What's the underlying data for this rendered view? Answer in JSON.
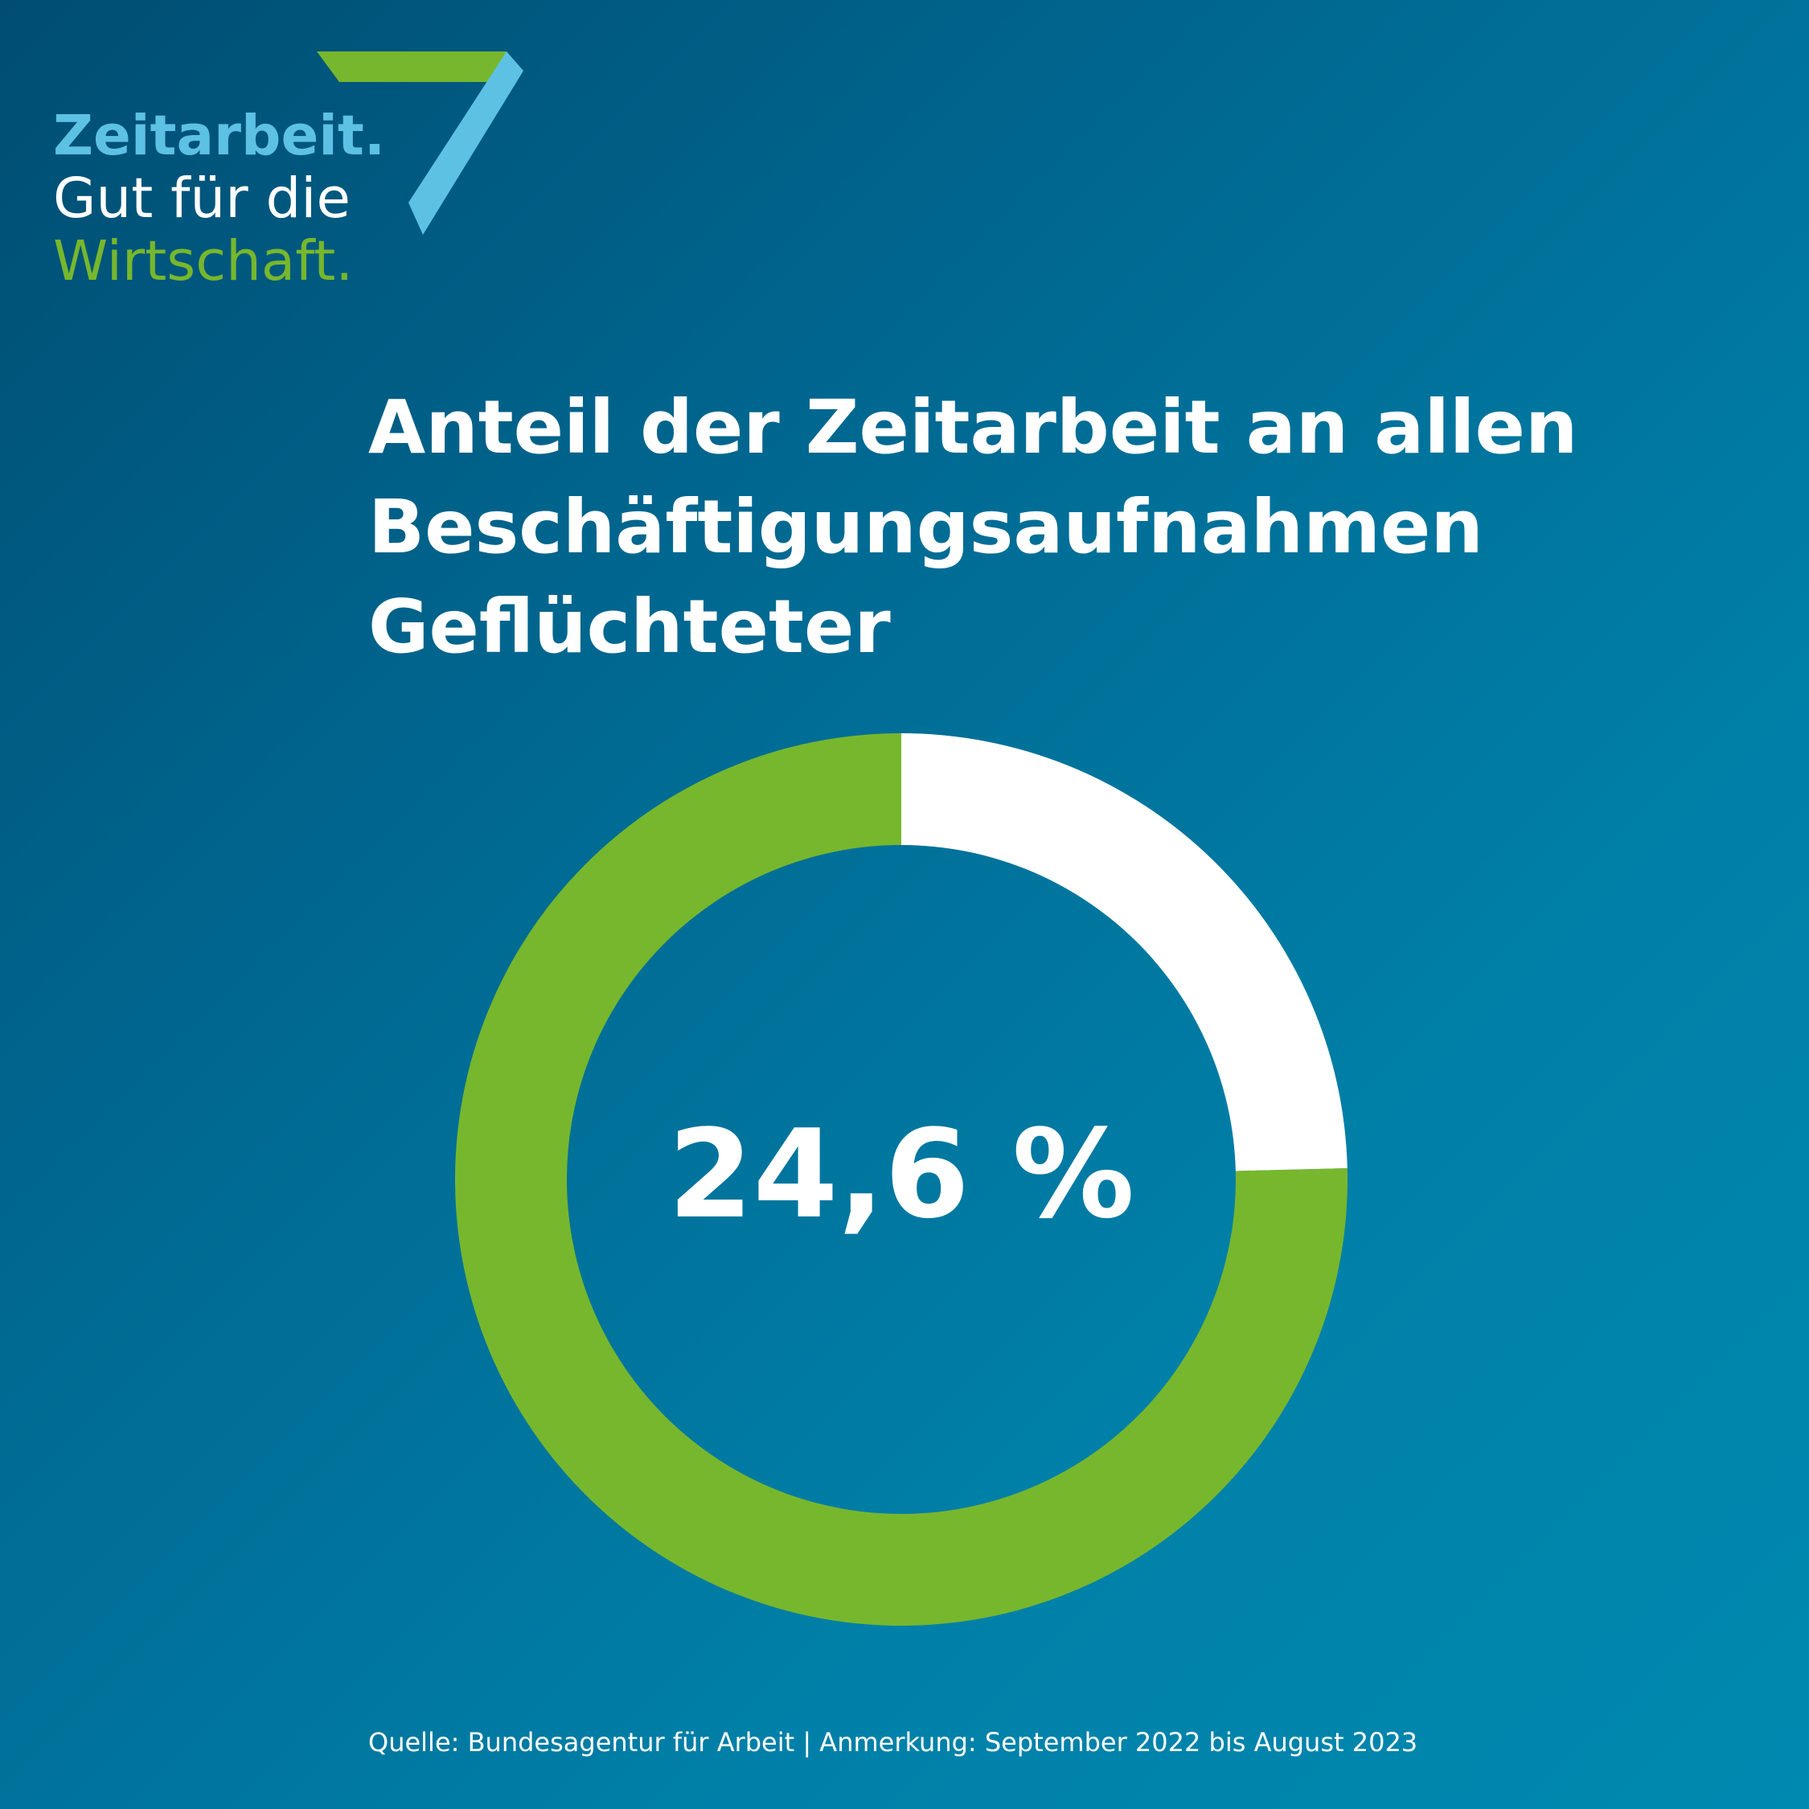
{
  "logo": {
    "line1": "Zeitarbeit.",
    "line2": "Gut für die",
    "line3": "Wirtschaft.",
    "mark_icon": "seven-mark-icon",
    "colors": {
      "blue": "#5dc1e4",
      "green": "#77b72d"
    }
  },
  "title_lines": [
    "Anteil der Zeitarbeit an allen",
    "Beschäftigungsaufnahmen",
    "Geflüchteter"
  ],
  "chart_data": {
    "type": "pie",
    "title": "Anteil der Zeitarbeit an allen Beschäftigungsaufnahmen Geflüchteter",
    "center_label": "24,6 %",
    "slices": [
      {
        "value": 24.6,
        "color": "#ffffff"
      },
      {
        "value": 75.4,
        "color": "#77b72d"
      }
    ],
    "donut": true
  },
  "source": "Quelle: Bundesagentur für Arbeit | Anmerkung: September 2022 bis August 2023"
}
